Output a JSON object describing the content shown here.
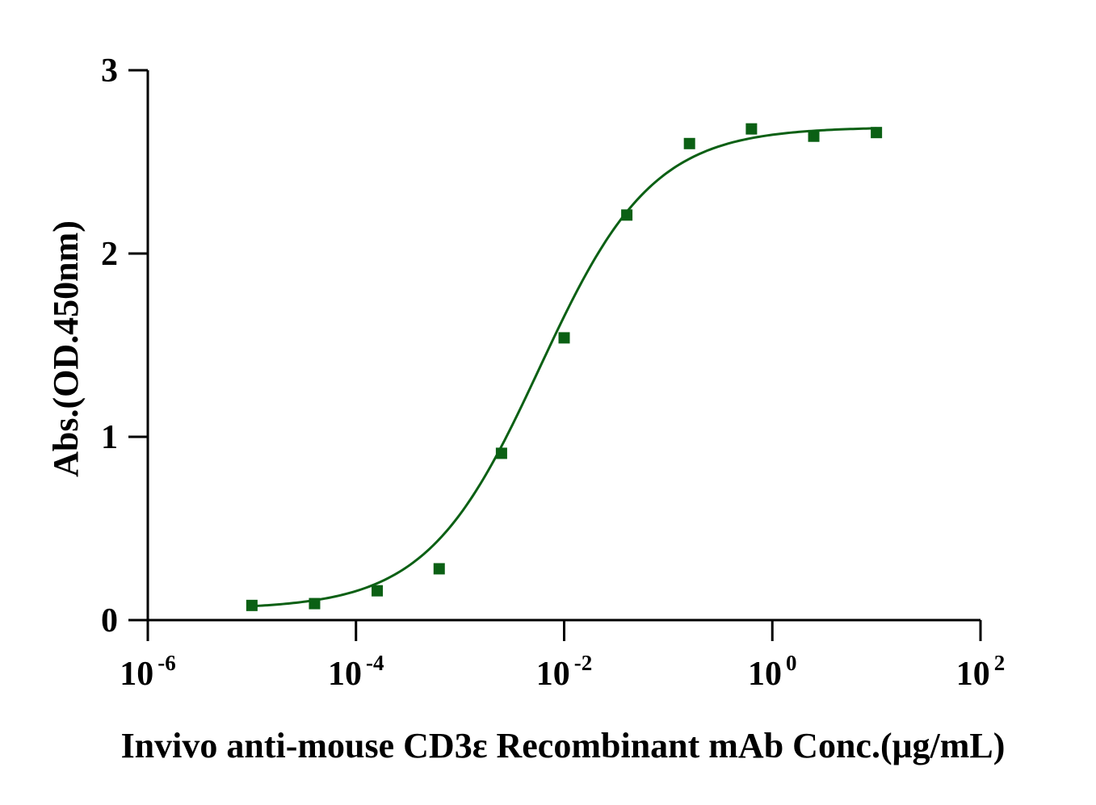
{
  "chart_data": {
    "type": "scatter",
    "xscale": "log",
    "xlabel": "Invivo anti-mouse CD3ε Recombinant mAb Conc.(μg/mL)",
    "ylabel": "Abs.(OD.450nm)",
    "xlim": [
      1e-06,
      100
    ],
    "ylim": [
      0,
      3
    ],
    "x_ticks": [
      {
        "value": 1e-06,
        "base": "10",
        "exp": "-6"
      },
      {
        "value": 0.0001,
        "base": "10",
        "exp": "-4"
      },
      {
        "value": 0.01,
        "base": "10",
        "exp": "-2"
      },
      {
        "value": 1,
        "base": "10",
        "exp": "0"
      },
      {
        "value": 100,
        "base": "10",
        "exp": "2"
      }
    ],
    "y_ticks": [
      {
        "value": 0,
        "label": "0"
      },
      {
        "value": 1,
        "label": "1"
      },
      {
        "value": 2,
        "label": "2"
      },
      {
        "value": 3,
        "label": "3"
      }
    ],
    "color": "#0b6014",
    "series": [
      {
        "marker": "square",
        "x": [
          1e-05,
          4e-05,
          0.00016,
          0.00063,
          0.0025,
          0.01,
          0.04,
          0.16,
          0.63,
          2.5,
          10
        ],
        "y": [
          0.08,
          0.09,
          0.16,
          0.28,
          0.91,
          1.54,
          2.21,
          2.6,
          2.68,
          2.64,
          2.66
        ]
      }
    ],
    "fit": {
      "model": "four-parameter logistic",
      "bottom": 0.06,
      "top": 2.69,
      "ec50": 0.0058,
      "hill": 0.8,
      "x_range": [
        1e-05,
        10
      ]
    }
  }
}
